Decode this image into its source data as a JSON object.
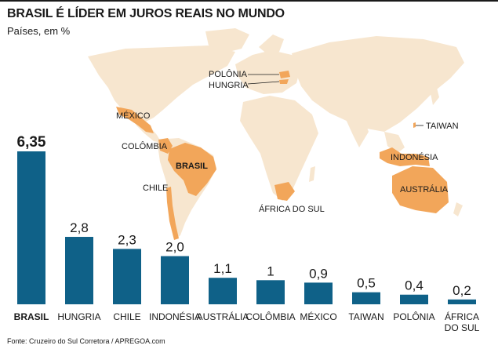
{
  "title": "BRASIL É LÍDER EM JUROS REAIS NO MUNDO",
  "subtitle": "Países, em %",
  "source": "Fonte: Cruzeiro do Sul Corretora / APREGOA.com",
  "colors": {
    "bar": "#0f6188",
    "land": "#f7e6cf",
    "highlight": "#f2a65a",
    "text": "#1a1a1a"
  },
  "map_labels": {
    "polonia": "POLÔNIA",
    "hungria": "HUNGRIA",
    "mexico": "MÉXICO",
    "taiwan": "TAIWAN",
    "colombia": "COLÔMBIA",
    "brasil": "BRASIL",
    "chile": "CHILE",
    "indonesia": "INDONÉSIA",
    "australia": "AUSTRÁLIA",
    "africa_do_sul": "ÁFRICA DO SUL"
  },
  "chart_data": {
    "type": "bar",
    "categories": [
      "BRASIL",
      "HUNGRIA",
      "CHILE",
      "INDONÉSIA",
      "AUSTRÁLIA",
      "COLÔMBIA",
      "MÉXICO",
      "TAIWAN",
      "POLÔNIA",
      "ÁFRICA DO SUL"
    ],
    "values": [
      6.35,
      2.8,
      2.3,
      2.0,
      1.1,
      1.0,
      0.9,
      0.5,
      0.4,
      0.2
    ],
    "value_labels": [
      "6,35",
      "2,8",
      "2,3",
      "2,0",
      "1,1",
      "1",
      "0,9",
      "0,5",
      "0,4",
      "0,2"
    ],
    "title": "BRASIL É LÍDER EM JUROS REAIS NO MUNDO",
    "subtitle": "Países, em %",
    "ylim": [
      0,
      6.35
    ],
    "grid": false,
    "legend": "none"
  }
}
